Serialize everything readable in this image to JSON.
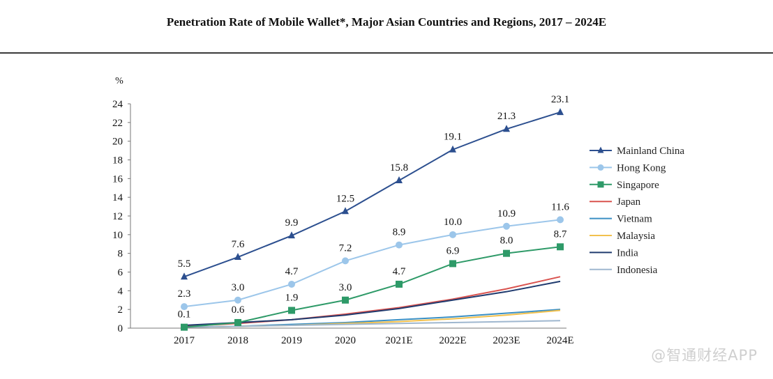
{
  "chart_data": {
    "type": "line",
    "title": "Penetration Rate of Mobile Wallet*, Major Asian Countries and Regions, 2017 – 2024E",
    "ylabel": "%",
    "xlabel": "",
    "categories": [
      "2017",
      "2018",
      "2019",
      "2020",
      "2021E",
      "2022E",
      "2023E",
      "2024E"
    ],
    "ylim": [
      0,
      24
    ],
    "yticks": [
      0,
      2,
      4,
      6,
      8,
      10,
      12,
      14,
      16,
      18,
      20,
      22,
      24
    ],
    "grid": false,
    "legend_position": "right",
    "series": [
      {
        "name": "Mainland China",
        "color": "#2c4f8f",
        "marker": "triangle",
        "labels": true,
        "values": [
          5.5,
          7.6,
          9.9,
          12.5,
          15.8,
          19.1,
          21.3,
          23.1
        ]
      },
      {
        "name": "Hong Kong",
        "color": "#9cc6ea",
        "marker": "circle",
        "labels": true,
        "values": [
          2.3,
          3.0,
          4.7,
          7.2,
          8.9,
          10.0,
          10.9,
          11.6
        ]
      },
      {
        "name": "Singapore",
        "color": "#2e9a68",
        "marker": "square",
        "labels": true,
        "values": [
          0.1,
          0.6,
          1.9,
          3.0,
          4.7,
          6.9,
          8.0,
          8.7
        ]
      },
      {
        "name": "Japan",
        "color": "#d9534f",
        "marker": "none",
        "labels": false,
        "values": [
          0.2,
          0.5,
          0.9,
          1.5,
          2.2,
          3.1,
          4.2,
          5.5
        ]
      },
      {
        "name": "Vietnam",
        "color": "#3a8fc4",
        "marker": "none",
        "labels": false,
        "values": [
          0.1,
          0.2,
          0.4,
          0.6,
          0.9,
          1.2,
          1.6,
          2.0
        ]
      },
      {
        "name": "Malaysia",
        "color": "#f2c14e",
        "marker": "none",
        "labels": false,
        "values": [
          0.1,
          0.2,
          0.3,
          0.5,
          0.7,
          1.0,
          1.4,
          1.9
        ]
      },
      {
        "name": "India",
        "color": "#1f3a6e",
        "marker": "none",
        "labels": false,
        "values": [
          0.3,
          0.6,
          0.9,
          1.4,
          2.1,
          3.0,
          3.9,
          5.0
        ]
      },
      {
        "name": "Indonesia",
        "color": "#9fb7cf",
        "marker": "none",
        "labels": false,
        "values": [
          0.1,
          0.2,
          0.3,
          0.4,
          0.5,
          0.6,
          0.7,
          0.8
        ]
      }
    ],
    "watermark": "@智通财经APP"
  }
}
